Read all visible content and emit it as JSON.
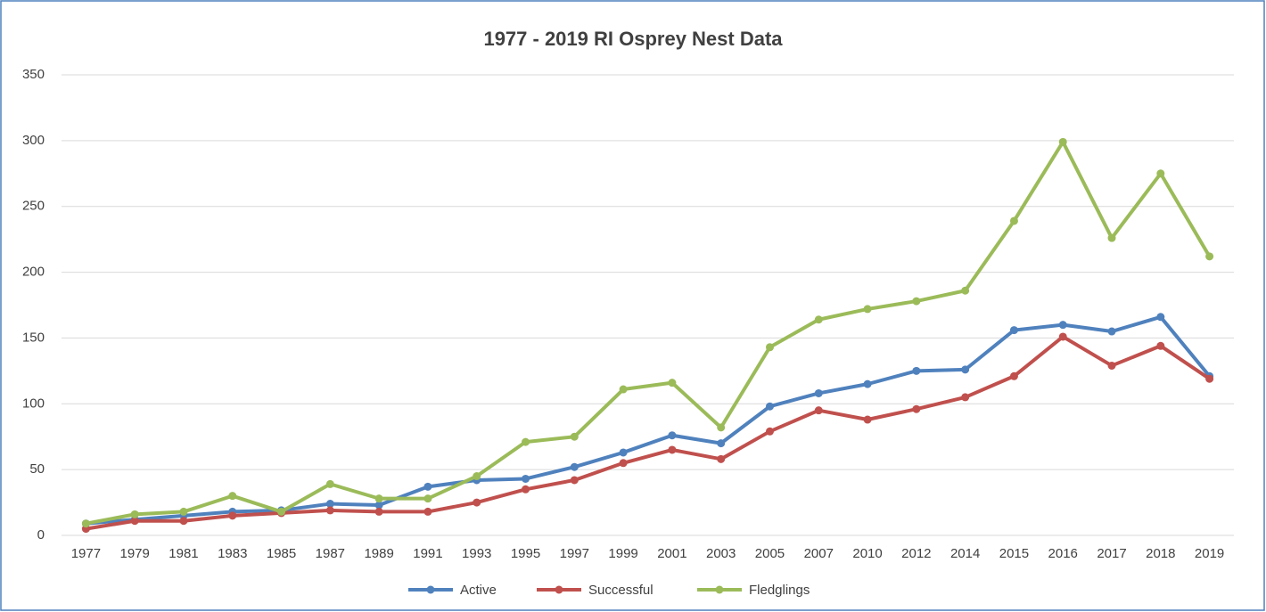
{
  "chart_data": {
    "type": "line",
    "title": "1977 - 2019 RI Osprey Nest Data",
    "categories": [
      "1977",
      "1979",
      "1981",
      "1983",
      "1985",
      "1987",
      "1989",
      "1991",
      "1993",
      "1995",
      "1997",
      "1999",
      "2001",
      "2003",
      "2005",
      "2007",
      "2010",
      "2012",
      "2014",
      "2015",
      "2016",
      "2017",
      "2018",
      "2019"
    ],
    "series": [
      {
        "name": "Active",
        "color": "#4f81bd",
        "values": [
          9,
          12,
          15,
          18,
          19,
          24,
          23,
          37,
          42,
          43,
          52,
          63,
          76,
          70,
          98,
          108,
          115,
          125,
          126,
          156,
          160,
          155,
          166,
          121
        ]
      },
      {
        "name": "Successful",
        "color": "#c0504d",
        "values": [
          5,
          11,
          11,
          15,
          17,
          19,
          18,
          18,
          25,
          35,
          42,
          55,
          65,
          58,
          79,
          95,
          88,
          96,
          105,
          121,
          151,
          129,
          144,
          119
        ]
      },
      {
        "name": "Fledglings",
        "color": "#9bbb59",
        "values": [
          9,
          16,
          18,
          30,
          18,
          39,
          28,
          28,
          45,
          71,
          75,
          111,
          116,
          82,
          143,
          164,
          172,
          178,
          186,
          239,
          299,
          226,
          275,
          212
        ]
      }
    ],
    "ylim": [
      0,
      350
    ],
    "yticks": [
      0,
      50,
      100,
      150,
      200,
      250,
      300,
      350
    ],
    "grid": true,
    "legend": "bottom"
  }
}
